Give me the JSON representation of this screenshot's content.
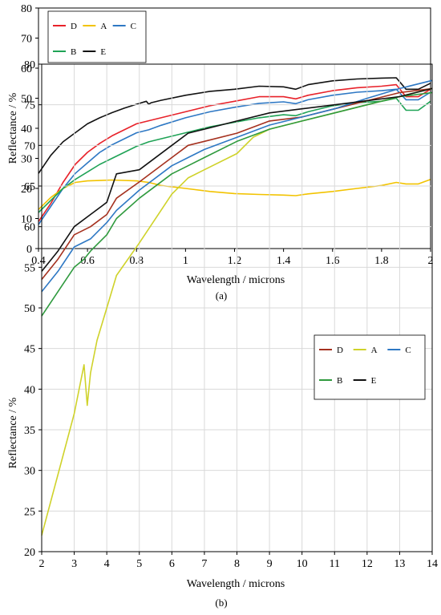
{
  "colors": {
    "D": "#e8222a",
    "A": "#f2c300",
    "C": "#2e78c4",
    "B": "#1fa356",
    "E": "#111111"
  },
  "chart_data": [
    {
      "type": "line",
      "panel_label": "(a)",
      "xlabel": "Wavelength / microns",
      "ylabel": "Reflectance / %",
      "xlim": [
        0.4,
        2.0
      ],
      "ylim": [
        0,
        80
      ],
      "x_ticks": [
        "0.4",
        "0.6",
        "0.8",
        "1",
        "1.2",
        "1.4",
        "1.6",
        "1.8",
        "2"
      ],
      "y_ticks": [
        "0",
        "10",
        "20",
        "30",
        "40",
        "50",
        "60",
        "70",
        "80"
      ],
      "grid": false,
      "legend_placement": "top-left",
      "legend": [
        "D",
        "A",
        "C",
        "B",
        "E"
      ],
      "series": [
        {
          "name": "D",
          "color": "#e8222a",
          "x": [
            0.4,
            0.45,
            0.5,
            0.55,
            0.6,
            0.65,
            0.7,
            0.75,
            0.8,
            0.85,
            0.9,
            1.0,
            1.1,
            1.2,
            1.3,
            1.4,
            1.45,
            1.5,
            1.6,
            1.7,
            1.8,
            1.86,
            1.9,
            1.95,
            2.0
          ],
          "y": [
            9,
            15,
            22,
            28,
            32,
            35,
            37.5,
            39.5,
            41.5,
            42.5,
            43.5,
            45.5,
            47.5,
            49,
            50.5,
            50.5,
            49.8,
            51,
            52.5,
            53.5,
            54,
            54.5,
            50.5,
            50.5,
            53
          ]
        },
        {
          "name": "A",
          "color": "#f2c300",
          "x": [
            0.4,
            0.45,
            0.5,
            0.55,
            0.6,
            0.7,
            0.8,
            0.85,
            0.9,
            1.0,
            1.1,
            1.2,
            1.3,
            1.4,
            1.45,
            1.5,
            1.6,
            1.7,
            1.8,
            1.86,
            1.9,
            1.95,
            2.0
          ],
          "y": [
            13,
            17,
            20,
            22,
            22.5,
            22.8,
            22.5,
            22,
            21,
            20,
            19,
            18.3,
            18,
            17.8,
            17.6,
            18.2,
            19,
            20,
            21,
            22,
            21.5,
            21.5,
            23
          ]
        },
        {
          "name": "C",
          "color": "#2e78c4",
          "x": [
            0.4,
            0.45,
            0.5,
            0.55,
            0.6,
            0.65,
            0.7,
            0.75,
            0.8,
            0.85,
            0.9,
            1.0,
            1.1,
            1.2,
            1.3,
            1.4,
            1.45,
            1.5,
            1.6,
            1.7,
            1.8,
            1.86,
            1.9,
            1.95,
            2.0
          ],
          "y": [
            8,
            14,
            20,
            25,
            28.5,
            32,
            34.5,
            36.5,
            38.5,
            39.5,
            41,
            43.5,
            45.5,
            47,
            48.3,
            48.8,
            48.2,
            49.5,
            51,
            52,
            52.5,
            53,
            49.5,
            49.5,
            52
          ]
        },
        {
          "name": "B",
          "color": "#1fa356",
          "x": [
            0.4,
            0.45,
            0.5,
            0.55,
            0.6,
            0.65,
            0.7,
            0.75,
            0.8,
            0.85,
            0.9,
            1.0,
            1.1,
            1.2,
            1.3,
            1.4,
            1.45,
            1.5,
            1.6,
            1.7,
            1.8,
            1.86,
            1.9,
            1.95,
            2.0
          ],
          "y": [
            12,
            16,
            20,
            23,
            25.5,
            28,
            30,
            32,
            34,
            35.5,
            36.5,
            38.5,
            40.5,
            42,
            43.5,
            44.5,
            44.2,
            45.5,
            47.5,
            48.5,
            49,
            50,
            46,
            46,
            49
          ]
        },
        {
          "name": "E",
          "color": "#111111",
          "x": [
            0.4,
            0.45,
            0.5,
            0.55,
            0.6,
            0.65,
            0.7,
            0.75,
            0.8,
            0.84,
            0.85,
            0.86,
            0.9,
            1.0,
            1.1,
            1.2,
            1.3,
            1.4,
            1.45,
            1.5,
            1.6,
            1.7,
            1.8,
            1.86,
            1.9,
            1.95,
            2.0
          ],
          "y": [
            25,
            31,
            35.5,
            38.5,
            41.5,
            43.5,
            45.2,
            46.7,
            48,
            49,
            48,
            48.5,
            49.3,
            51,
            52.3,
            53,
            54,
            53.8,
            53,
            54.5,
            55.8,
            56.4,
            56.7,
            56.8,
            53,
            53,
            55
          ]
        }
      ]
    },
    {
      "type": "line",
      "panel_label": "(b)",
      "xlabel": "Wavelength / microns",
      "ylabel": "Reflectance / %",
      "xlim": [
        2,
        14
      ],
      "ylim": [
        20,
        80
      ],
      "x_ticks": [
        "2",
        "3",
        "4",
        "5",
        "6",
        "7",
        "8",
        "9",
        "10",
        "11",
        "12",
        "13",
        "14"
      ],
      "y_ticks": [
        "20",
        "25",
        "30",
        "35",
        "40",
        "45",
        "50",
        "55",
        "60",
        "65",
        "70",
        "75",
        "80"
      ],
      "grid": true,
      "legend_placement": "right",
      "legend": [
        "D",
        "A",
        "C",
        "B",
        "E"
      ],
      "series": [
        {
          "name": "D",
          "color": "#a5311f",
          "x": [
            2,
            2.5,
            3,
            3.5,
            4,
            4.3,
            5,
            6,
            6.5,
            7,
            8,
            9,
            10,
            11,
            12,
            13,
            14
          ],
          "y": [
            53.5,
            56,
            59,
            60,
            61.5,
            63.5,
            65.5,
            68.5,
            70,
            70.5,
            71.5,
            73,
            73.5,
            74.5,
            75.5,
            76.5,
            77
          ]
        },
        {
          "name": "A",
          "color": "#cfd22a",
          "x": [
            2,
            2.2,
            2.6,
            3,
            3.3,
            3.4,
            3.5,
            3.7,
            4,
            4.3,
            5,
            6,
            6.5,
            7,
            8,
            8.5,
            9,
            10,
            11,
            12,
            13,
            14
          ],
          "y": [
            22,
            25,
            31,
            37,
            43,
            38,
            42,
            46,
            50,
            54,
            58,
            64,
            66,
            67,
            69,
            71,
            72,
            73,
            74,
            75,
            76,
            77
          ]
        },
        {
          "name": "C",
          "color": "#2e78c4",
          "x": [
            2,
            2.5,
            3,
            3.5,
            4,
            4.3,
            5,
            6,
            6.5,
            7,
            8,
            9,
            10,
            11,
            12,
            13,
            14
          ],
          "y": [
            52,
            54.5,
            57.5,
            58.5,
            60.5,
            62,
            64.5,
            67.5,
            68.5,
            69.5,
            71,
            72.5,
            73.5,
            74.5,
            75.8,
            77,
            78
          ]
        },
        {
          "name": "B",
          "color": "#2f9a3e",
          "x": [
            2,
            2.5,
            3,
            3.3,
            3.5,
            4,
            4.3,
            5,
            6,
            6.5,
            7,
            8,
            9,
            10,
            11,
            12,
            13,
            14
          ],
          "y": [
            49,
            52,
            55,
            56,
            57,
            59,
            61,
            63.5,
            66.5,
            67.5,
            68.5,
            70.5,
            72,
            73,
            74,
            75,
            76,
            76.5
          ]
        },
        {
          "name": "E",
          "color": "#111111",
          "x": [
            2,
            2.5,
            3,
            3.5,
            4,
            4.3,
            5,
            6,
            6.5,
            7,
            8,
            9,
            10,
            11,
            12,
            13,
            14
          ],
          "y": [
            54.5,
            57,
            60,
            61.5,
            63,
            66.5,
            67,
            70,
            71.5,
            72,
            73,
            74,
            74.5,
            75,
            75.5,
            76,
            77
          ]
        }
      ]
    }
  ]
}
